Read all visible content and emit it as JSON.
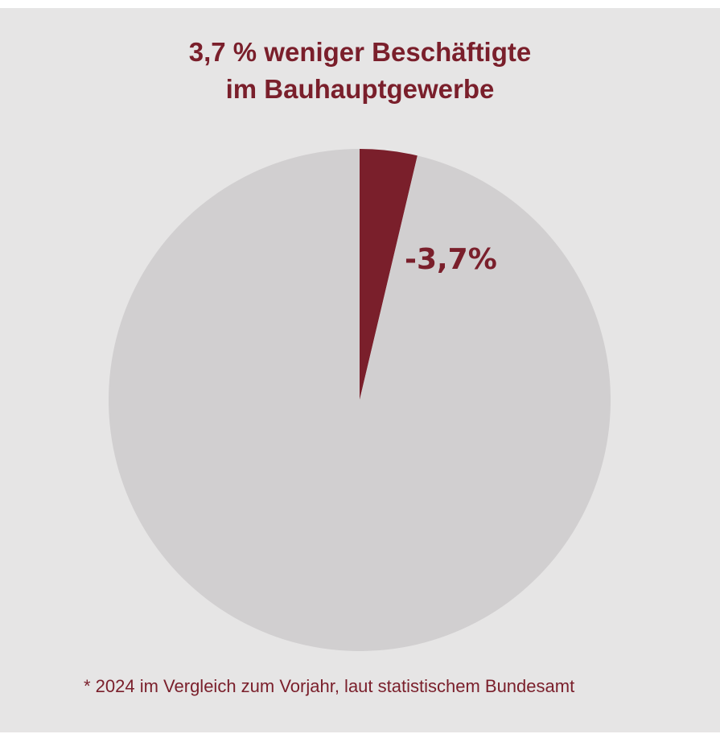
{
  "chart_data": {
    "type": "pie",
    "title_lines": [
      "3,7 % weniger Beschäftigte",
      "im Bauhauptgewerbe"
    ],
    "slices": [
      {
        "value": 3.7,
        "label": "-3,7%",
        "color": "#7a1f2b"
      },
      {
        "value": 96.3,
        "label": "",
        "color": "#d1cfd0"
      }
    ],
    "footnote": "* 2024 im Vergleich zum Vorjahr, laut statistischem Bundesamt"
  },
  "colors": {
    "background": "#e6e5e5",
    "accent": "#7a1f2b",
    "pie_rest": "#d1cfd0"
  }
}
